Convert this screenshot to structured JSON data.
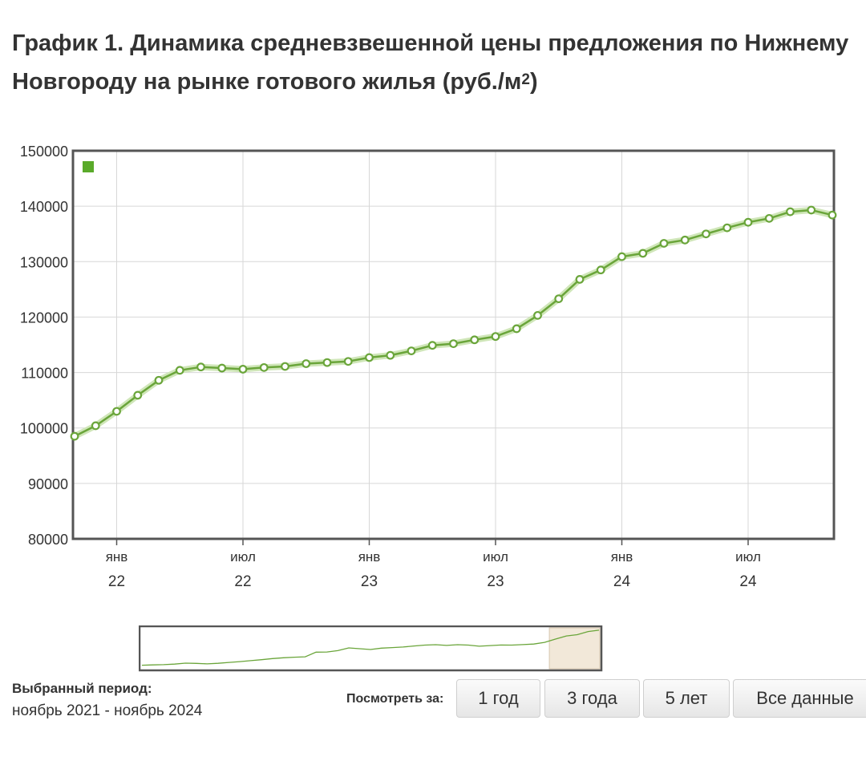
{
  "page": {
    "title_line1": "График 1. Динамика средневзвешенной цены предложения по Нижнему",
    "title_line2": "Новгороду на рынке готового жилья (руб./м",
    "title_sup": "2",
    "title_close": ")"
  },
  "chart_data": {
    "type": "line",
    "x": [
      "2021-11",
      "2021-12",
      "2022-01",
      "2022-02",
      "2022-03",
      "2022-04",
      "2022-05",
      "2022-06",
      "2022-07",
      "2022-08",
      "2022-09",
      "2022-10",
      "2022-11",
      "2022-12",
      "2023-01",
      "2023-02",
      "2023-03",
      "2023-04",
      "2023-05",
      "2023-06",
      "2023-07",
      "2023-08",
      "2023-09",
      "2023-10",
      "2023-11",
      "2023-12",
      "2024-01",
      "2024-02",
      "2024-03",
      "2024-04",
      "2024-05",
      "2024-06",
      "2024-07",
      "2024-08",
      "2024-09",
      "2024-10",
      "2024-11"
    ],
    "series": [
      {
        "color": "#6aa53a",
        "values": [
          98500,
          100400,
          103000,
          105900,
          108600,
          110400,
          111000,
          110800,
          110600,
          110900,
          111100,
          111600,
          111800,
          112000,
          112700,
          113100,
          113900,
          114900,
          115200,
          115900,
          116500,
          117900,
          120300,
          123300,
          126800,
          128500,
          130900,
          131500,
          133300,
          133900,
          135000,
          136100,
          137100,
          137800,
          139000,
          139300,
          138400
        ]
      }
    ],
    "ylim": [
      80000,
      150000
    ],
    "yticks": [
      "150000",
      "140000",
      "130000",
      "120000",
      "110000",
      "100000",
      "90000",
      "80000"
    ],
    "xticks": [
      {
        "month": "янв",
        "year": "22",
        "x": "2022-01"
      },
      {
        "month": "июл",
        "year": "22",
        "x": "2022-07"
      },
      {
        "month": "янв",
        "year": "23",
        "x": "2023-01"
      },
      {
        "month": "июл",
        "year": "23",
        "x": "2023-07"
      },
      {
        "month": "янв",
        "year": "24",
        "x": "2024-01"
      },
      {
        "month": "июл",
        "year": "24",
        "x": "2024-07"
      }
    ],
    "grid": true,
    "legend": "top-left"
  },
  "navigator": {
    "selected_fraction": [
      0.89,
      1.0
    ],
    "overview_values": [
      57000,
      57200,
      57400,
      57800,
      58500,
      58300,
      58000,
      58400,
      59000,
      59600,
      60300,
      61000,
      61800,
      62400,
      62800,
      63100,
      66500,
      66600,
      67600,
      69600,
      69000,
      68400,
      69400,
      69800,
      70200,
      71000,
      71600,
      71900,
      71400,
      71900,
      71600,
      70800,
      71300,
      71700,
      71600,
      72000,
      72400,
      73600,
      76000,
      78300,
      79200,
      81500,
      82500
    ]
  },
  "period": {
    "label": "Выбранный период:",
    "value": "ноябрь 2021 - ноябрь 2024"
  },
  "range_selector": {
    "label": "Посмотреть за:",
    "buttons": [
      "1 год",
      "3 года",
      "5 лет",
      "Все данные"
    ]
  }
}
